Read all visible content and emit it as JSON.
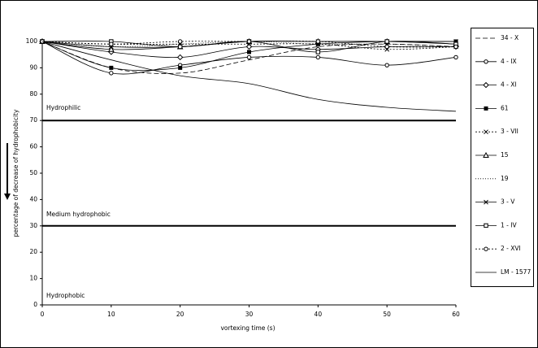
{
  "chart_data": {
    "type": "line",
    "x_label": "vortexing time (s)",
    "y_label": "percentage of decrease of hydrophobicity",
    "annotations": [
      "Hydrophilic",
      "Medium hydrophobic",
      "Hydrophobic"
    ],
    "reference_lines": [
      70,
      30
    ],
    "x": [
      0,
      10,
      20,
      30,
      40,
      50,
      60
    ],
    "xlim": [
      0,
      60
    ],
    "xticks": [
      0,
      10,
      20,
      30,
      40,
      50,
      60
    ],
    "ylim": [
      0,
      100
    ],
    "yticks": [
      0,
      10,
      20,
      30,
      40,
      50,
      60,
      70,
      80,
      90,
      100
    ],
    "series": [
      {
        "name": "34 - X",
        "color": "#000000",
        "dash": "6,3",
        "marker": "none",
        "values": [
          100,
          90,
          88,
          93,
          98,
          99,
          98
        ]
      },
      {
        "name": "4 - IX",
        "color": "#000000",
        "dash": "none",
        "marker": "circle",
        "values": [
          100,
          88,
          91,
          94,
          94,
          91,
          94
        ]
      },
      {
        "name": "4 - XI",
        "color": "#000000",
        "dash": "none",
        "marker": "diamond",
        "values": [
          100,
          96,
          94,
          98,
          97,
          98,
          98
        ]
      },
      {
        "name": "61",
        "color": "#000000",
        "dash": "none",
        "marker": "filled-square",
        "values": [
          100,
          90,
          90,
          96,
          99,
          100,
          100
        ]
      },
      {
        "name": "3 - VII",
        "color": "#000000",
        "dash": "2,2",
        "marker": "x",
        "values": [
          100,
          99,
          99,
          99,
          99,
          97,
          98
        ]
      },
      {
        "name": "15",
        "color": "#000000",
        "dash": "none",
        "marker": "triangle",
        "values": [
          100,
          97,
          98,
          100,
          100,
          100,
          99
        ]
      },
      {
        "name": "19",
        "color": "#000000",
        "dash": "1,2",
        "marker": "none",
        "values": [
          100,
          98,
          99,
          100,
          99,
          99,
          98
        ]
      },
      {
        "name": "3 - V",
        "color": "#000000",
        "dash": "none",
        "marker": "x",
        "values": [
          100,
          98,
          98,
          100,
          100,
          100,
          100
        ]
      },
      {
        "name": "1 - IV",
        "color": "#000000",
        "dash": "none",
        "marker": "square",
        "values": [
          100,
          100,
          98,
          100,
          96,
          100,
          99
        ]
      },
      {
        "name": "2 - XVI",
        "color": "#000000",
        "dash": "2,2",
        "marker": "circle",
        "values": [
          100,
          99,
          100,
          100,
          100,
          98,
          98
        ]
      },
      {
        "name": "LM - 1577",
        "color": "#000000",
        "dash": "none",
        "marker": "none",
        "values": [
          100,
          93,
          87,
          84,
          78,
          75,
          73.5
        ]
      }
    ]
  }
}
